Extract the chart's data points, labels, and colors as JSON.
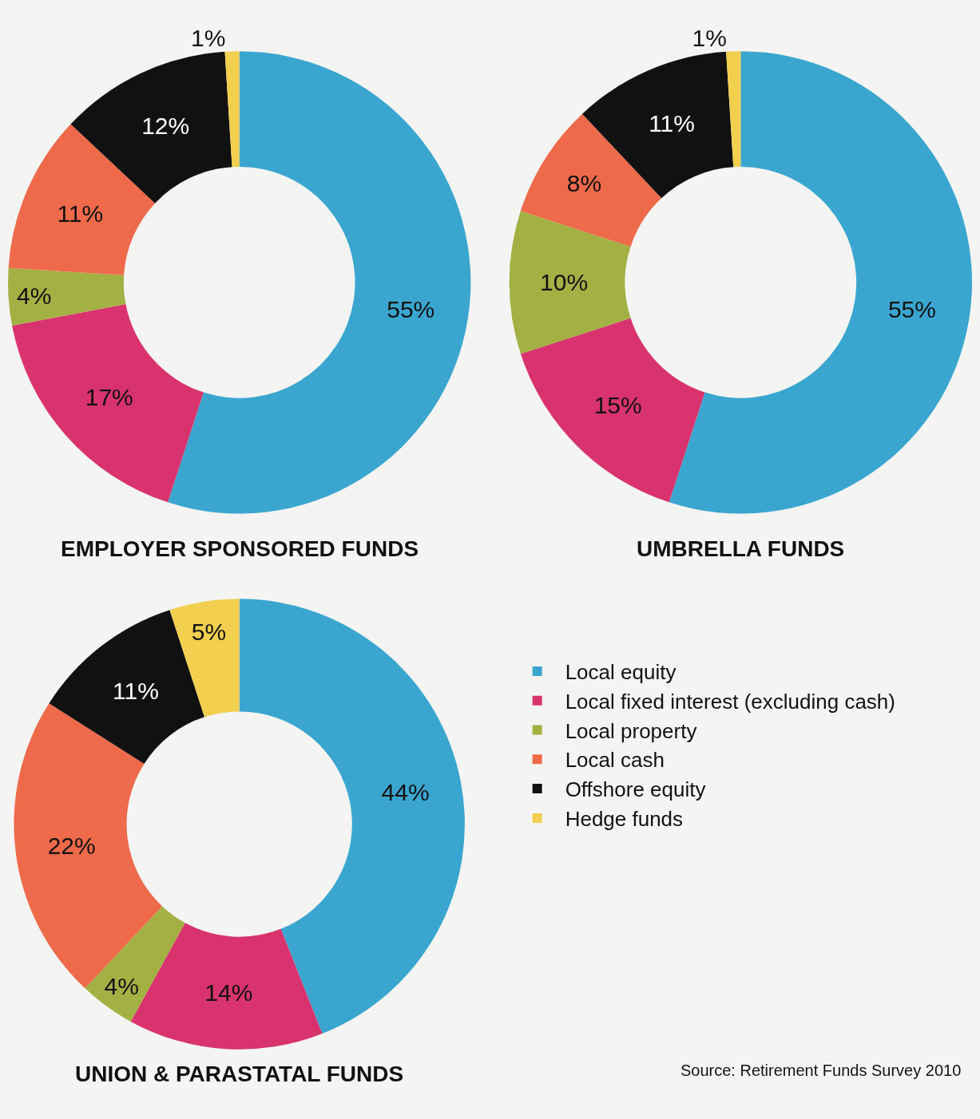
{
  "chart_data": [
    {
      "type": "donut",
      "title": "EMPLOYER SPONSORED FUNDS",
      "categories": [
        "Local equity",
        "Local fixed interest (excluding cash)",
        "Local property",
        "Local cash",
        "Offshore equity",
        "Hedge funds"
      ],
      "values": [
        55,
        17,
        4,
        11,
        12,
        1
      ],
      "value_labels": [
        "55%",
        "17%",
        "4%",
        "11%",
        "12%",
        "1%"
      ],
      "colors": [
        "#3aa6d0",
        "#d8336e",
        "#a3b043",
        "#ee6a4a",
        "#111111",
        "#f2cf4e"
      ],
      "legend": "bottom right"
    },
    {
      "type": "donut",
      "title": "UMBRELLA FUNDS",
      "categories": [
        null,
        null,
        null,
        null,
        null,
        null
      ],
      "values": [
        55,
        15,
        10,
        8,
        11,
        1
      ],
      "value_labels": [
        "55%",
        "15%",
        "10%",
        "8%",
        "11%",
        "1%"
      ],
      "colors": [
        "#3aa6d0",
        "#d8336e",
        "#a3b043",
        "#ee6a4a",
        "#111111",
        "#f2cf4e"
      ]
    },
    {
      "type": "donut",
      "title": "UNION & PARASTATAL FUNDS",
      "categories": [
        null,
        null,
        null,
        null,
        null,
        null
      ],
      "values": [
        44,
        14,
        4,
        22,
        11,
        5
      ],
      "value_labels": [
        "44%",
        "14%",
        "4%",
        "22%",
        "11%",
        "5%"
      ],
      "colors": [
        "#3aa6d0",
        "#d8336e",
        "#a3b043",
        "#ee6a4a",
        "#111111",
        "#f2cf4e"
      ],
      "annotations": [
        "Source: Retirement Funds Survey 2010"
      ]
    }
  ]
}
